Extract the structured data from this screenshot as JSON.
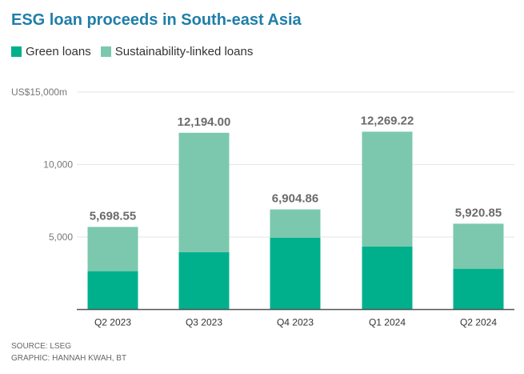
{
  "chart_data": {
    "type": "bar",
    "stacked": true,
    "title": "ESG loan proceeds in South-east Asia",
    "categories": [
      "Q2 2023",
      "Q3 2023",
      "Q4 2023",
      "Q1 2024",
      "Q2 2024"
    ],
    "series": [
      {
        "name": "Green loans",
        "color": "#00b08c",
        "values": [
          2646,
          3953,
          4961,
          4355,
          2811
        ]
      },
      {
        "name": "Sustainability-linked loans",
        "color": "#7bc8ae",
        "values": [
          3052.55,
          8241.0,
          1943.86,
          7914.22,
          3109.85
        ]
      }
    ],
    "totals": [
      5698.55,
      12194.0,
      6904.86,
      12269.22,
      5920.85
    ],
    "total_labels": [
      "5,698.55",
      "12,194.00",
      "6,904.86",
      "12,269.22",
      "5,920.85"
    ],
    "yticks": [
      5000,
      10000,
      15000
    ],
    "ytick_labels": [
      "5,000",
      "10,000",
      "US$15,000m"
    ],
    "ylim": [
      0,
      15000
    ],
    "xlabel": "",
    "ylabel": "",
    "grid": true,
    "legend": "top-left"
  },
  "source": "SOURCE: LSEG",
  "credit": "GRAPHIC: HANNAH KWAH, BT"
}
